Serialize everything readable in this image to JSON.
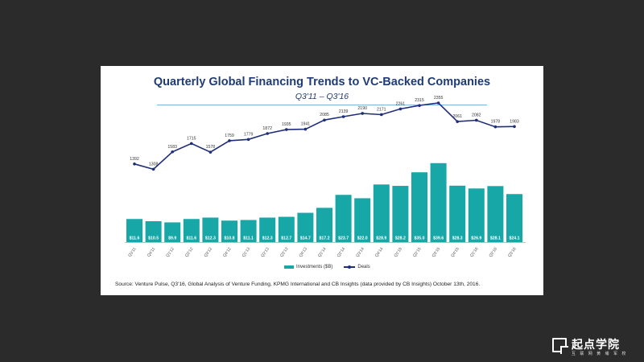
{
  "chart_data": {
    "type": "bar",
    "title": "Quarterly Global Financing Trends to VC-Backed Companies",
    "subtitle": "Q3'11 – Q3'16",
    "categories": [
      "Q3'11",
      "Q4'11",
      "Q1'12",
      "Q2'12",
      "Q3'12",
      "Q4'12",
      "Q1'13",
      "Q2'13",
      "Q3'13",
      "Q4'13",
      "Q1'14",
      "Q2'14",
      "Q3'14",
      "Q4'14",
      "Q1'15",
      "Q2'15",
      "Q3'15",
      "Q4'15",
      "Q1'16",
      "Q2'16",
      "Q3'16"
    ],
    "series": [
      {
        "name": "Investments ($B)",
        "type": "bar",
        "color": "#17a7a7",
        "values": [
          11.6,
          10.5,
          9.9,
          11.6,
          12.3,
          10.8,
          11.1,
          12.3,
          12.7,
          14.7,
          17.2,
          23.7,
          22.0,
          28.9,
          28.2,
          35.0,
          39.6,
          28.3,
          26.9,
          28.1,
          24.1
        ],
        "labels": [
          "$11.6",
          "$10.5",
          "$9.9",
          "$11.6",
          "$12.3",
          "$10.8",
          "$11.1",
          "$12.3",
          "$12.7",
          "$14.7",
          "$17.2",
          "$23.7",
          "$22.0",
          "$28.9",
          "$28.2",
          "$35.0",
          "$39.6",
          "$28.3",
          "$26.9",
          "$28.1",
          "$24.1"
        ]
      },
      {
        "name": "Deals",
        "type": "line",
        "color": "#1f2e7a",
        "values": [
          1392,
          1308,
          1583,
          1715,
          1578,
          1759,
          1779,
          1872,
          1935,
          1941,
          2085,
          2139,
          2190,
          2171,
          2261,
          2315,
          2355,
          2061,
          2082,
          1978,
          1983
        ]
      }
    ],
    "legend_position": "bottom",
    "grid": false
  },
  "source_text": "Source: Venture Pulse, Q3'16, Global Analysis of Venture Funding, KPMG International and CB Insights (data provided by CB Insights) October 13th, 2016.",
  "logo": {
    "name": "起点学院",
    "tagline": "互 联 网 黄 埔 军 校"
  }
}
